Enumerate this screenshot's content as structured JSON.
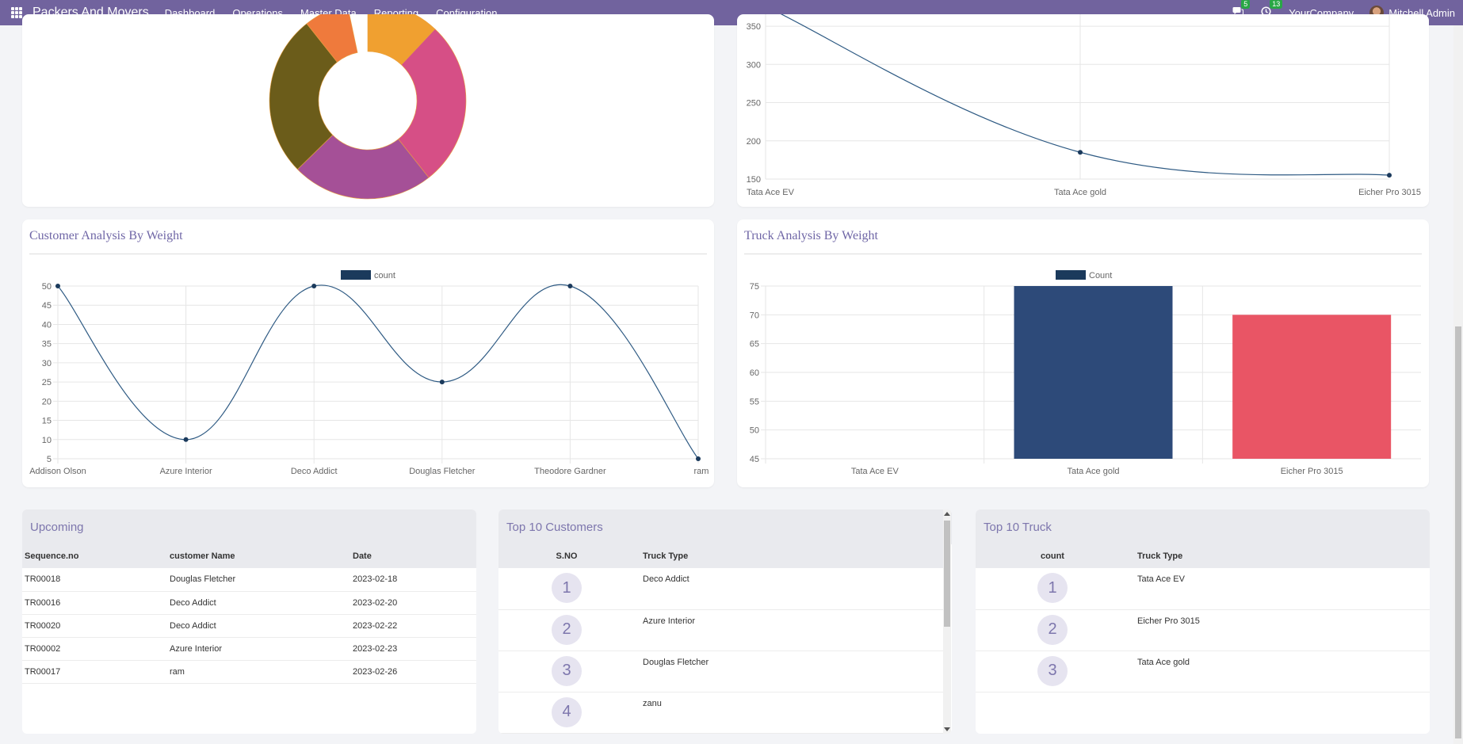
{
  "navbar": {
    "app_name": "Packers And Movers",
    "menu": [
      "Dashboard",
      "Operations",
      "Master Data",
      "Reporting",
      "Configuration"
    ],
    "messages_badge": "5",
    "activities_badge": "13",
    "company": "YourCompany",
    "user": "Mitchell Admin",
    "icons": [
      "apps-grid-icon",
      "chat-icon",
      "clock-icon",
      "avatar"
    ]
  },
  "colors": {
    "navbar": "#71639e",
    "title": "#6f66a6",
    "line": "#2e5a83",
    "bar_1": "#2d4a79",
    "bar_2": "#e95565"
  },
  "donut": {
    "chart_data": {
      "type": "pie",
      "donut": true,
      "slice_colors": [
        "#f0a030",
        "#d64f86",
        "#a55097",
        "#6b5c1a",
        "#ef7a3c"
      ]
    }
  },
  "top_right_chart": {
    "chart_data": {
      "type": "line",
      "categories": [
        "Tata Ace EV",
        "Tata Ace gold",
        "Eicher Pro 3015"
      ],
      "values": [
        376,
        185,
        155
      ],
      "y_ticks": [
        "150",
        "200",
        "250",
        "300",
        "350"
      ],
      "ylim": [
        150,
        376
      ]
    }
  },
  "customer_chart": {
    "title": "Customer Analysis By Weight",
    "chart_data": {
      "type": "line",
      "legend": "count",
      "categories": [
        "Addison Olson",
        "Azure Interior",
        "Deco Addict",
        "Douglas Fletcher",
        "Theodore Gardner",
        "ram"
      ],
      "values": [
        50,
        10,
        50,
        25,
        50,
        5
      ],
      "y_ticks": [
        "5",
        "10",
        "15",
        "20",
        "25",
        "30",
        "35",
        "40",
        "45",
        "50"
      ],
      "ylim": [
        5,
        50
      ],
      "grid": true,
      "legend_position": "top"
    }
  },
  "truck_chart": {
    "title": "Truck Analysis By Weight",
    "chart_data": {
      "type": "bar",
      "legend": "Count",
      "categories": [
        "Tata Ace EV",
        "Tata Ace gold",
        "Eicher Pro 3015"
      ],
      "values": [
        null,
        75,
        70
      ],
      "y_ticks": [
        "45",
        "50",
        "55",
        "60",
        "65",
        "70",
        "75"
      ],
      "ylim": [
        45,
        75
      ],
      "grid": true,
      "legend_position": "top"
    }
  },
  "upcoming": {
    "title": "Upcoming",
    "headers": [
      "Sequence.no",
      "customer Name",
      "Date"
    ],
    "rows": [
      [
        "TR00018",
        "Douglas Fletcher",
        "2023-02-18"
      ],
      [
        "TR00016",
        "Deco Addict",
        "2023-02-20"
      ],
      [
        "TR00020",
        "Deco Addict",
        "2023-02-22"
      ],
      [
        "TR00002",
        "Azure Interior",
        "2023-02-23"
      ],
      [
        "TR00017",
        "ram",
        "2023-02-26"
      ]
    ]
  },
  "top_customers": {
    "title": "Top 10 Customers",
    "headers": [
      "S.NO",
      "Truck Type"
    ],
    "rows": [
      [
        "1",
        "Deco Addict"
      ],
      [
        "2",
        "Azure Interior"
      ],
      [
        "3",
        "Douglas Fletcher"
      ],
      [
        "4",
        "zanu"
      ]
    ]
  },
  "top_trucks": {
    "title": "Top 10 Truck",
    "headers": [
      "count",
      "Truck Type"
    ],
    "rows": [
      [
        "1",
        "Tata Ace EV"
      ],
      [
        "2",
        "Eicher Pro 3015"
      ],
      [
        "3",
        "Tata Ace gold"
      ]
    ]
  }
}
